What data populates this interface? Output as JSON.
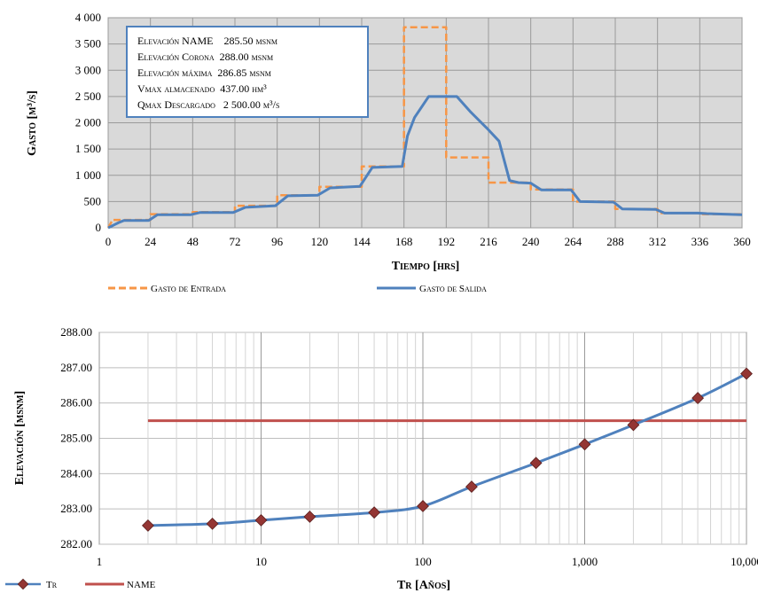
{
  "chart_data": [
    {
      "type": "line",
      "xlabel": "Tiempo [hrs]",
      "ylabel": "Gasto [m³/s]",
      "xlim": [
        0,
        360
      ],
      "ylim": [
        0,
        4000
      ],
      "x_ticks": [
        "0",
        "24",
        "48",
        "72",
        "96",
        "120",
        "144",
        "168",
        "192",
        "216",
        "240",
        "264",
        "288",
        "312",
        "336",
        "360"
      ],
      "y_ticks": [
        "0",
        "500",
        "1 000",
        "1 500",
        "2 000",
        "2 500",
        "3 000",
        "3 500",
        "4 000"
      ],
      "grid": true,
      "legend_position": "bottom",
      "annotation_lines": [
        "Elevación NAME    285.50 msnm",
        "Elevación Corona  288.00 msnm",
        "Elevación máxima  286.85 msnm",
        "Vmax almacenado  437.00 hm³",
        "Qmax Descargado   2 500.00 m³/s"
      ],
      "series": [
        {
          "name": "Gasto de Entrada",
          "color": "#F79646",
          "style": "dashed",
          "x": [
            0,
            2,
            2,
            24,
            24,
            48,
            48,
            72,
            72,
            96,
            96,
            120,
            120,
            144,
            144,
            168,
            168,
            192,
            192,
            216,
            216,
            240,
            240,
            264,
            264,
            288,
            288,
            312,
            312,
            336,
            336,
            360
          ],
          "y": [
            0,
            120,
            150,
            150,
            260,
            260,
            300,
            300,
            420,
            420,
            620,
            620,
            780,
            780,
            1170,
            1170,
            3820,
            3820,
            1340,
            1340,
            860,
            860,
            730,
            730,
            500,
            500,
            360,
            360,
            280,
            280,
            260,
            260
          ]
        },
        {
          "name": "Gasto de Salida",
          "color": "#4F81BD",
          "style": "solid",
          "x": [
            0,
            6,
            9,
            23,
            28,
            47,
            52,
            71,
            78,
            95,
            102,
            119,
            126,
            143,
            150,
            167,
            170,
            174,
            182,
            198,
            206,
            215,
            222,
            228,
            233,
            240,
            246,
            263,
            268,
            287,
            292,
            311,
            316,
            335,
            340,
            360
          ],
          "y": [
            0,
            100,
            140,
            140,
            250,
            250,
            290,
            290,
            390,
            420,
            610,
            620,
            760,
            790,
            1150,
            1170,
            1750,
            2100,
            2500,
            2500,
            2200,
            1900,
            1650,
            900,
            860,
            850,
            720,
            720,
            500,
            490,
            360,
            350,
            280,
            280,
            270,
            250
          ]
        }
      ]
    },
    {
      "type": "line",
      "xlabel": "Tr [Años]",
      "ylabel": "Elevación [msnm]",
      "x_scale": "log",
      "xlim": [
        1,
        10000
      ],
      "ylim": [
        282,
        288
      ],
      "x_ticks": [
        "1",
        "10",
        "100",
        "1,000",
        "10,000"
      ],
      "y_ticks": [
        "282.00",
        "283.00",
        "284.00",
        "285.00",
        "286.00",
        "287.00",
        "288.00"
      ],
      "grid": true,
      "legend_position": "bottom-left",
      "series": [
        {
          "name": "Tr",
          "color": "#4F81BD",
          "marker_color": "#943634",
          "x": [
            2,
            5,
            10,
            20,
            50,
            100,
            200,
            500,
            1000,
            2000,
            5000,
            10000
          ],
          "y": [
            282.53,
            282.58,
            282.68,
            282.78,
            282.9,
            283.08,
            283.63,
            284.3,
            284.83,
            285.38,
            286.14,
            286.83
          ]
        },
        {
          "name": "NAME",
          "color": "#C0504D",
          "x": [
            2,
            10000
          ],
          "y": [
            285.5,
            285.5
          ]
        }
      ]
    }
  ]
}
